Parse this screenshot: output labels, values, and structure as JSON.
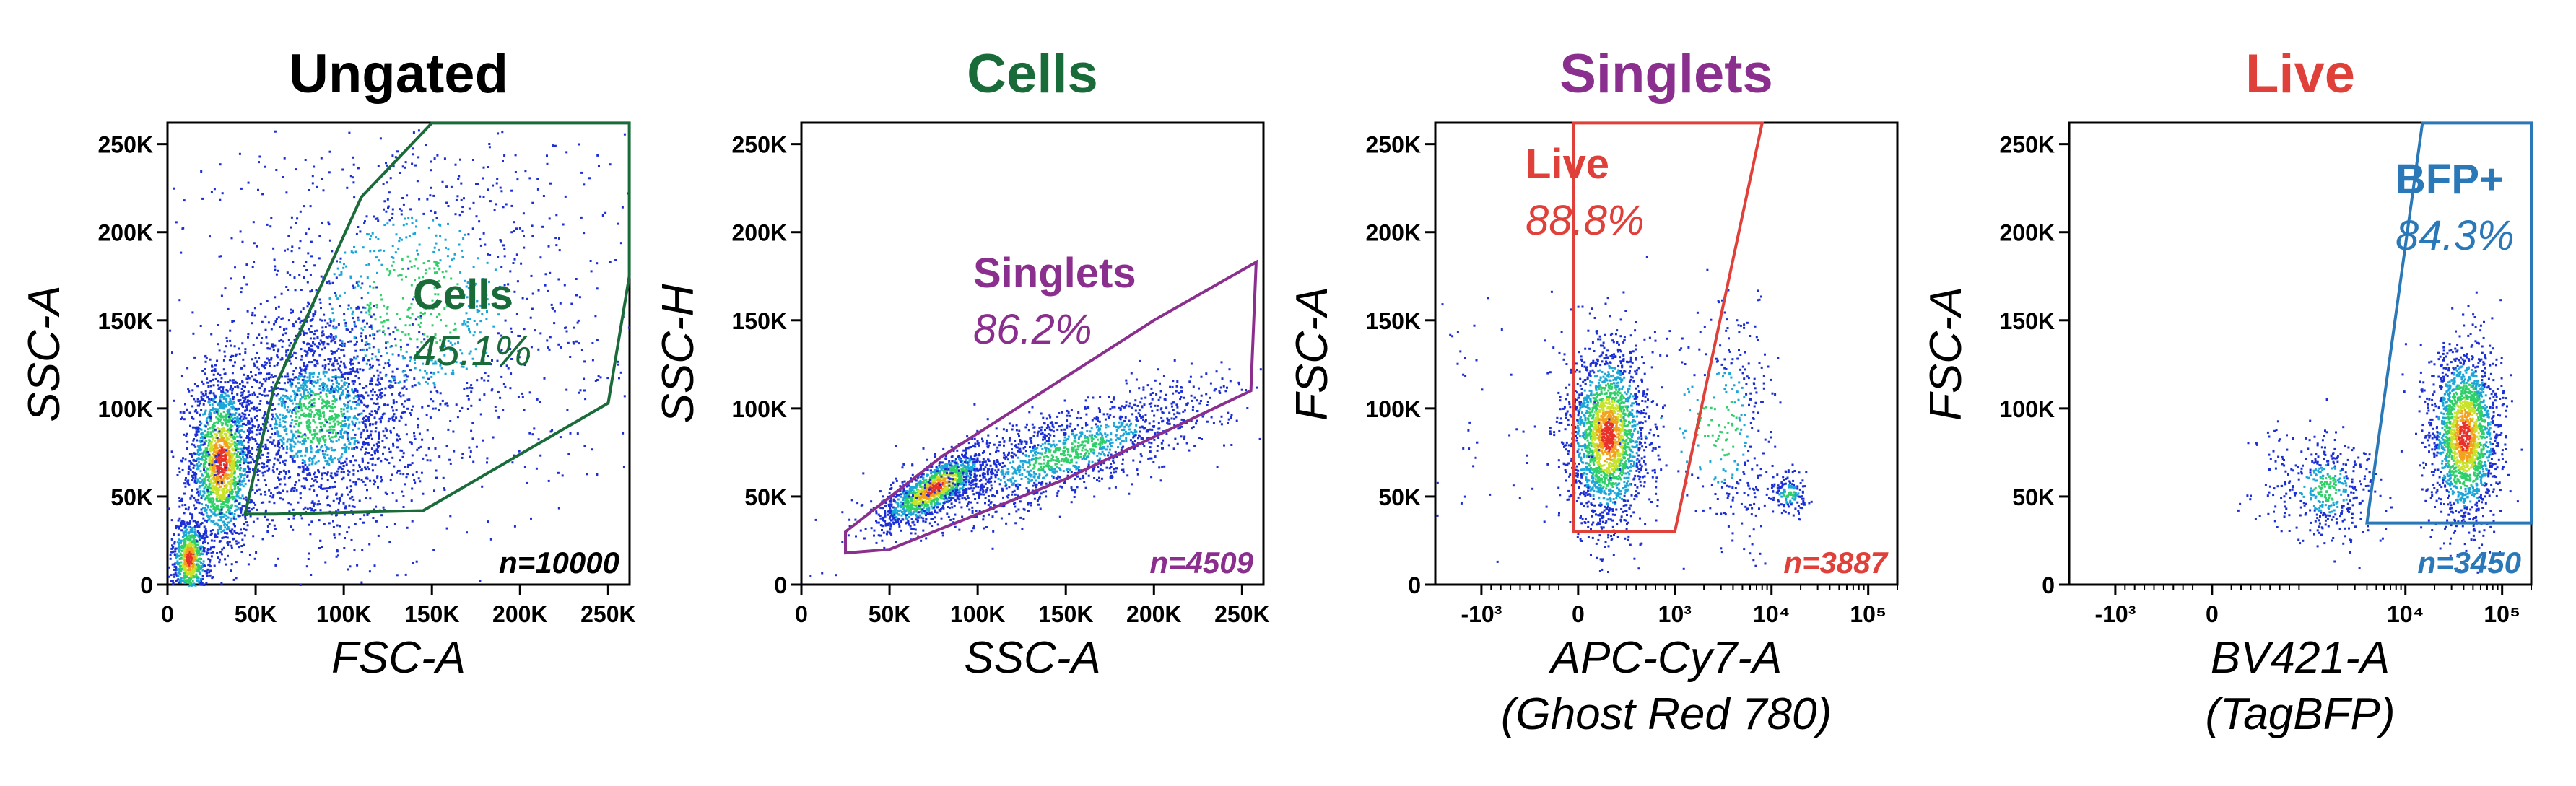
{
  "chart_data": [
    {
      "type": "scatter",
      "title": "Ungated",
      "title_color": "#000000",
      "xlabel": "FSC-A",
      "ylabel": "SSC-A",
      "xscale": "linear",
      "xlim": [
        0,
        262144
      ],
      "ylim": [
        0,
        262144
      ],
      "xticks": [
        0,
        50000,
        100000,
        150000,
        200000,
        250000
      ],
      "xticklabels": [
        "0",
        "50K",
        "100K",
        "150K",
        "200K",
        "250K"
      ],
      "yticks": [
        0,
        50000,
        100000,
        150000,
        200000,
        250000
      ],
      "yticklabels": [
        "0",
        "50K",
        "100K",
        "150K",
        "200K",
        "250K"
      ],
      "event_count_label": "n=10000",
      "gate": {
        "name": "Cells",
        "percent": "45.1%",
        "color": "#1a6b3a",
        "vertices": [
          [
            44000,
            40000
          ],
          [
            60000,
            40000
          ],
          [
            145000,
            42000
          ],
          [
            250000,
            103000
          ],
          [
            262000,
            175000
          ],
          [
            262000,
            262000
          ],
          [
            150000,
            262000
          ],
          [
            110000,
            220000
          ],
          [
            60000,
            110000
          ]
        ]
      },
      "populations": [
        {
          "cx": 30000,
          "cy": 70000,
          "sx": 9000,
          "sy": 25000,
          "n": 1700,
          "dense": true
        },
        {
          "cx": 12000,
          "cy": 15000,
          "sx": 5000,
          "sy": 12000,
          "n": 700,
          "dense": true
        },
        {
          "cx": 85000,
          "cy": 95000,
          "sx": 28000,
          "sy": 30000,
          "n": 2100,
          "dense": false
        },
        {
          "cx": 140000,
          "cy": 160000,
          "sx": 55000,
          "sy": 55000,
          "n": 1200,
          "dense": false
        }
      ]
    },
    {
      "type": "scatter",
      "title": "Cells",
      "title_color": "#1a6b3a",
      "xlabel": "SSC-A",
      "ylabel": "SSC-H",
      "xscale": "linear",
      "xlim": [
        0,
        262144
      ],
      "ylim": [
        0,
        262144
      ],
      "xticks": [
        0,
        50000,
        100000,
        150000,
        200000,
        250000
      ],
      "xticklabels": [
        "0",
        "50K",
        "100K",
        "150K",
        "200K",
        "250K"
      ],
      "yticks": [
        0,
        50000,
        100000,
        150000,
        200000,
        250000
      ],
      "yticklabels": [
        "0",
        "50K",
        "100K",
        "150K",
        "200K",
        "250K"
      ],
      "event_count_label": "n=4509",
      "gate": {
        "name": "Singlets",
        "percent": "86.2%",
        "color": "#8b2f8f",
        "vertices": [
          [
            25000,
            18000
          ],
          [
            50000,
            20000
          ],
          [
            150000,
            60000
          ],
          [
            255000,
            110000
          ],
          [
            258000,
            183000
          ],
          [
            200000,
            150000
          ],
          [
            80000,
            73000
          ],
          [
            25000,
            30000
          ]
        ]
      },
      "populations": [
        {
          "cx": 75000,
          "cy": 55000,
          "sx": 15000,
          "sy": 7000,
          "n": 1300,
          "dense": true,
          "slope": 0.55
        },
        {
          "cx": 150000,
          "cy": 75000,
          "sx": 45000,
          "sy": 12000,
          "n": 1500,
          "dense": false,
          "slope": 0.35
        }
      ]
    },
    {
      "type": "scatter",
      "title": "Singlets",
      "title_color": "#8b2f8f",
      "xlabel": "APC-Cy7-A",
      "xlabel2": "(Ghost Red 780)",
      "ylabel": "FSC-A",
      "xscale": "biexponential",
      "xlim": [
        -3000,
        200000
      ],
      "ylim": [
        0,
        262144
      ],
      "xticks": [
        -1000,
        0,
        1000,
        10000,
        100000
      ],
      "xticklabels": [
        "-10³",
        "0",
        "10³",
        "10⁴",
        "10⁵"
      ],
      "yticks": [
        0,
        50000,
        100000,
        150000,
        200000,
        250000
      ],
      "yticklabels": [
        "0",
        "50K",
        "100K",
        "150K",
        "200K",
        "250K"
      ],
      "event_count_label": "n=3887",
      "gate": {
        "name": "Live",
        "percent": "88.8%",
        "color": "#e0403a",
        "vertices": [
          [
            -50,
            30000
          ],
          [
            1000,
            30000
          ],
          [
            8000,
            262000
          ],
          [
            -50,
            262000
          ]
        ]
      },
      "populations": [
        {
          "cx": 300,
          "cy": 85000,
          "sx": 200,
          "sy": 25000,
          "n": 2100,
          "dense": true
        },
        {
          "cx": 3000,
          "cy": 90000,
          "sx": 3000,
          "sy": 35000,
          "n": 400,
          "dense": false
        },
        {
          "cx": 15000,
          "cy": 52000,
          "sx": 4000,
          "sy": 6000,
          "n": 150,
          "dense": false
        }
      ]
    },
    {
      "type": "scatter",
      "title": "Live",
      "title_color": "#e0403a",
      "xlabel": "BV421-A",
      "xlabel2": "(TagBFP)",
      "ylabel": "FSC-A",
      "xscale": "biexponential",
      "xlim": [
        -3000,
        200000
      ],
      "ylim": [
        0,
        262144
      ],
      "xticks": [
        -1000,
        0,
        10000,
        100000
      ],
      "xticklabels": [
        "-10³",
        "0",
        "10⁴",
        "10⁵"
      ],
      "yticks": [
        0,
        50000,
        100000,
        150000,
        200000,
        250000
      ],
      "yticklabels": [
        "0",
        "50K",
        "100K",
        "150K",
        "200K",
        "250K"
      ],
      "event_count_label": "n=3450",
      "gate": {
        "name": "BFP+",
        "percent": "84.3%",
        "color": "#2a78b8",
        "vertices": [
          [
            4000,
            35000
          ],
          [
            200000,
            35000
          ],
          [
            200000,
            262000
          ],
          [
            15000,
            262000
          ]
        ]
      },
      "populations": [
        {
          "cx": 40000,
          "cy": 85000,
          "sx": 20000,
          "sy": 25000,
          "n": 1900,
          "dense": true,
          "logx": true
        },
        {
          "cx": 1500,
          "cy": 55000,
          "sx": 1200,
          "sy": 15000,
          "n": 450,
          "dense": false,
          "logx": true
        }
      ]
    }
  ]
}
